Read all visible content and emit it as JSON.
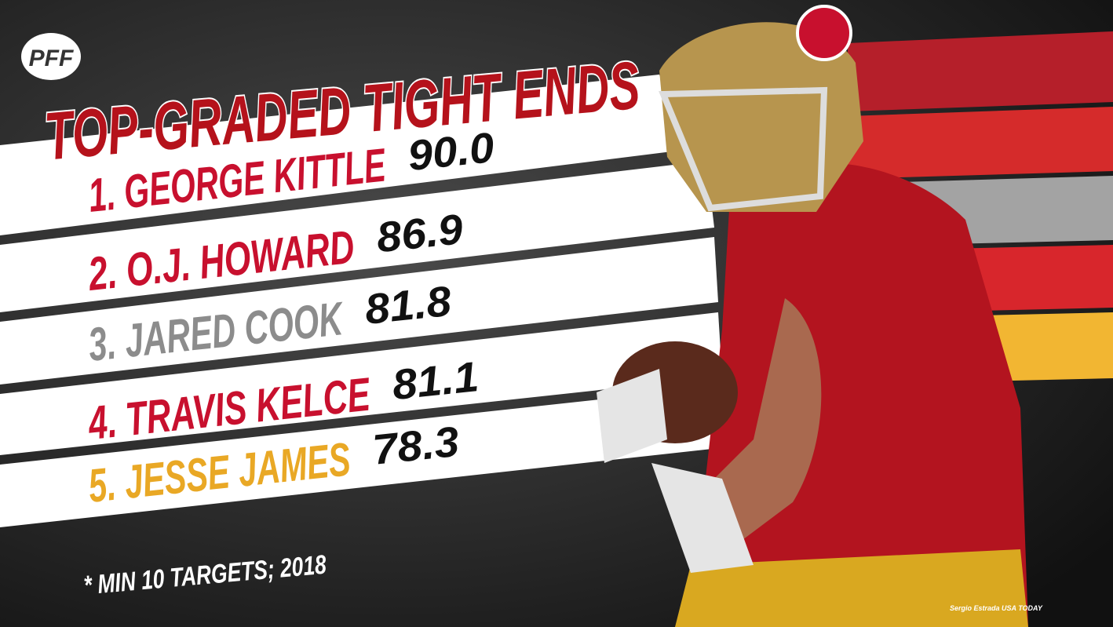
{
  "logo": "PFF",
  "title": "TOP-GRADED TIGHT ENDS",
  "rows": [
    {
      "label": "1. GEORGE KITTLE",
      "grade": "90.0",
      "color": "#c8102e"
    },
    {
      "label": "2. O.J. HOWARD",
      "grade": "86.9",
      "color": "#c8102e"
    },
    {
      "label": "3. JARED COOK",
      "grade": "81.8",
      "color": "#8c8c8c"
    },
    {
      "label": "4. TRAVIS KELCE",
      "grade": "81.1",
      "color": "#c8102e"
    },
    {
      "label": "5. JESSE JAMES",
      "grade": "78.3",
      "color": "#e9a825"
    }
  ],
  "footnote": "* MIN 10 TARGETS; 2018",
  "credit": "Sergio Estrada USA TODAY"
}
